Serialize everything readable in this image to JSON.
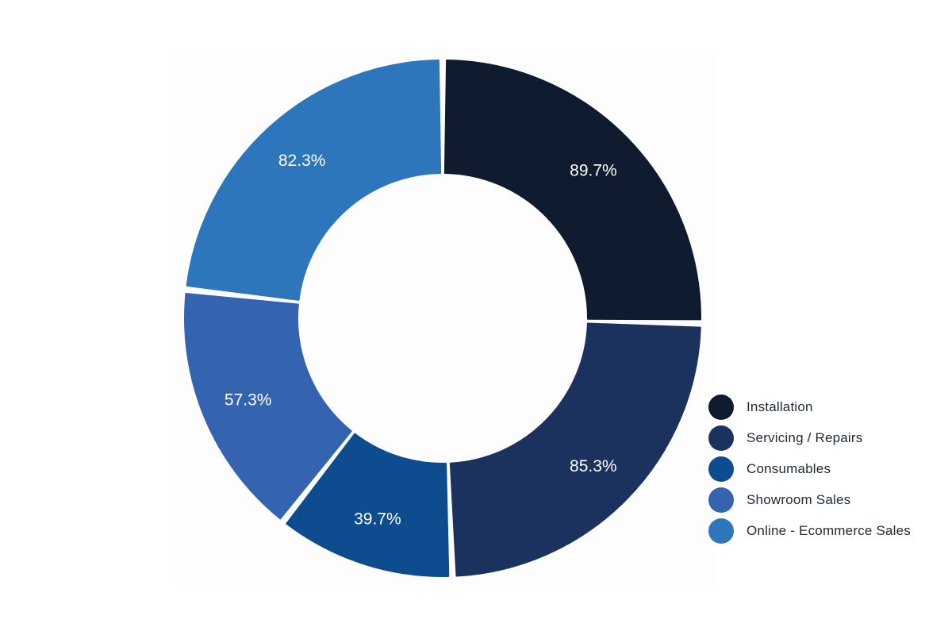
{
  "chart_data": {
    "type": "pie",
    "title": "",
    "donut": true,
    "categories": [
      "Installation",
      "Servicing / Repairs",
      "Consumables",
      "Showroom Sales",
      "Online - Ecommerce Sales"
    ],
    "values": [
      89.7,
      85.3,
      39.7,
      57.3,
      82.3
    ],
    "labels": [
      "89.7%",
      "85.3%",
      "39.7%",
      "57.3%",
      "82.3%"
    ],
    "colors": [
      "#0f1b2e",
      "#1c325e",
      "#0d4c8e",
      "#3464b0",
      "#2e76bc"
    ],
    "legend": {
      "position": "right-bottom",
      "items": [
        {
          "label": "Installation",
          "color": "#0f1b2e"
        },
        {
          "label": "Servicing / Repairs",
          "color": "#1c325e"
        },
        {
          "label": "Consumables",
          "color": "#0d4c8e"
        },
        {
          "label": "Showroom Sales",
          "color": "#3464b0"
        },
        {
          "label": "Online - Ecommerce Sales",
          "color": "#2e76bc"
        }
      ]
    }
  }
}
